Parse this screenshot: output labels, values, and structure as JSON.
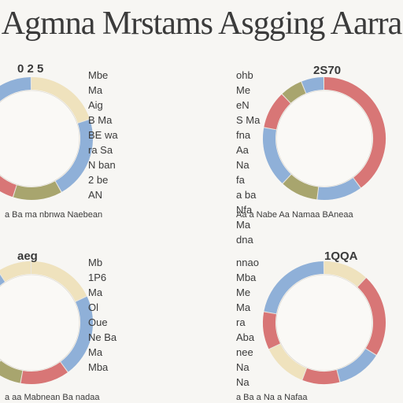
{
  "title": "Agmna Mrstams Asgging Aarra",
  "colors": {
    "blue": "#8fb0d8",
    "red": "#d87676",
    "olive": "#a8a56e",
    "cream": "#efe2bd",
    "text": "#3a3a3a"
  },
  "chart_data": [
    {
      "type": "pie",
      "style": "donut",
      "title": "0 2 5",
      "slices": [
        {
          "color": "cream",
          "value": 20
        },
        {
          "color": "blue",
          "value": 22
        },
        {
          "color": "olive",
          "value": 13
        },
        {
          "color": "red",
          "value": 10
        },
        {
          "color": "olive",
          "value": 6
        },
        {
          "color": "blue",
          "value": 29
        }
      ],
      "labels": [
        "Mbe",
        "Ma",
        "Aig",
        "B Ma",
        "BE wa",
        "ra Sa",
        "N ban",
        "2 be",
        "AN"
      ],
      "footer": "a Ba ma nbnwa Naebean"
    },
    {
      "type": "pie",
      "style": "donut",
      "title": "2S70",
      "slices": [
        {
          "color": "red",
          "value": 40
        },
        {
          "color": "blue",
          "value": 12
        },
        {
          "color": "olive",
          "value": 10
        },
        {
          "color": "blue",
          "value": 16
        },
        {
          "color": "red",
          "value": 10
        },
        {
          "color": "olive",
          "value": 6
        },
        {
          "color": "blue",
          "value": 6
        }
      ],
      "labels": [
        "ohb",
        "Me",
        "eN",
        "S Ma",
        "fna",
        "Aa",
        "Na",
        "fa",
        "a ba",
        "Nfa",
        "Ma",
        "dna"
      ],
      "footer": "Aa a Nabe Aa Namaa BAneaa"
    },
    {
      "type": "pie",
      "style": "donut",
      "title": "aeg",
      "slices": [
        {
          "color": "cream",
          "value": 18
        },
        {
          "color": "blue",
          "value": 22
        },
        {
          "color": "red",
          "value": 13
        },
        {
          "color": "olive",
          "value": 8
        },
        {
          "color": "blue",
          "value": 30
        },
        {
          "color": "cream",
          "value": 9
        }
      ],
      "labels": [
        "Mb",
        "1P6",
        "Ma",
        "Ol",
        "Oue",
        "Ne Ba",
        "Ma",
        "Mba"
      ],
      "footer": "a aa Mabnean Ba nadaa"
    },
    {
      "type": "pie",
      "style": "donut",
      "title": "1QQA",
      "slices": [
        {
          "color": "cream",
          "value": 12
        },
        {
          "color": "red",
          "value": 22
        },
        {
          "color": "blue",
          "value": 12
        },
        {
          "color": "red",
          "value": 10
        },
        {
          "color": "cream",
          "value": 12
        },
        {
          "color": "red",
          "value": 10
        },
        {
          "color": "blue",
          "value": 22
        }
      ],
      "labels": [
        "nnao",
        "Mba",
        "Me",
        "Ma",
        "ra",
        "Aba",
        "nee",
        "Na",
        "Na"
      ],
      "footer": "a Ba a Na a Nafaa"
    }
  ]
}
